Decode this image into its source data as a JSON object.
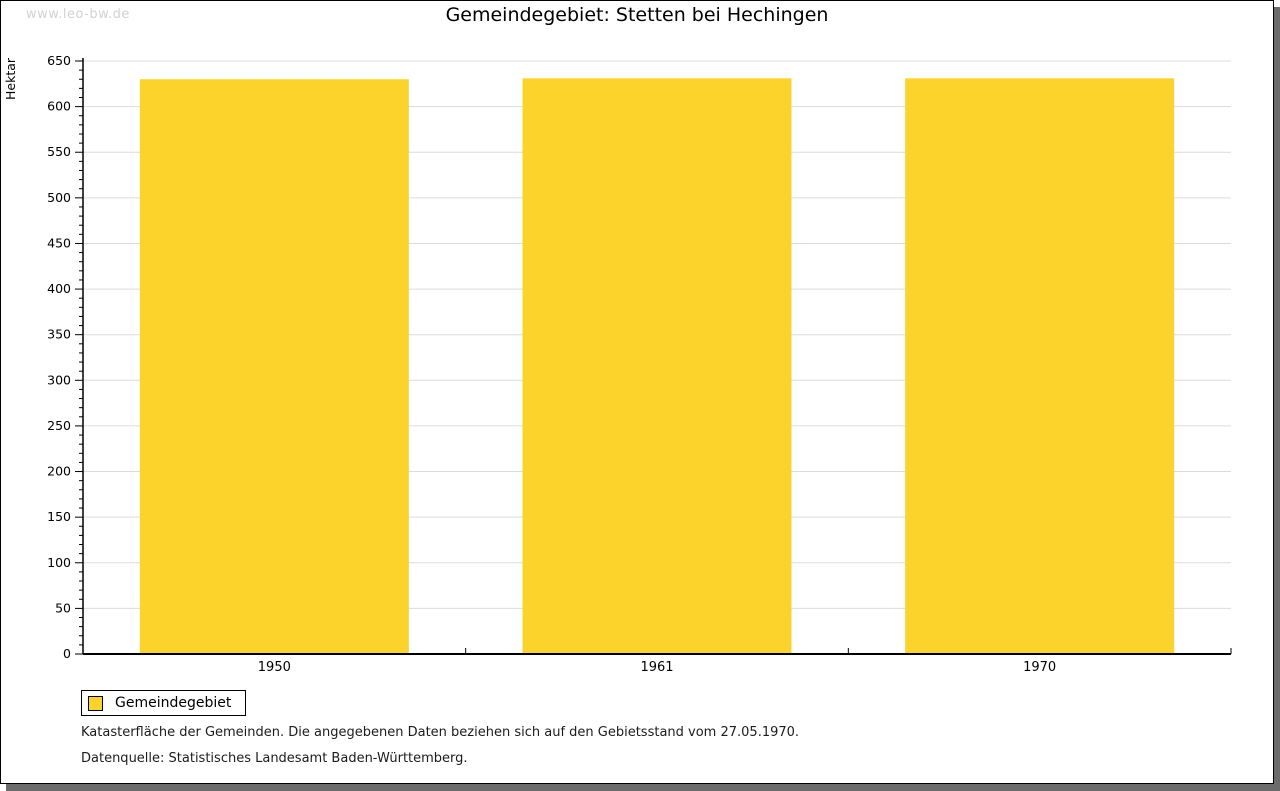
{
  "page": {
    "watermark": "www.leo-bw.de",
    "title": "Gemeindegebiet: Stetten bei Hechingen"
  },
  "chart_data": {
    "type": "bar",
    "title": "Gemeindegebiet: Stetten bei Hechingen",
    "categories": [
      "1950",
      "1961",
      "1970"
    ],
    "series": [
      {
        "name": "Gemeindegebiet",
        "values": [
          630,
          631,
          631
        ]
      }
    ],
    "xlabel": "",
    "ylabel": "Hektar",
    "ylim": [
      0,
      650
    ],
    "ytick_major": 50,
    "ytick_minor": 10,
    "grid": "horizontal-major",
    "legend_position": "bottom-left",
    "bar_color": "#fbd32a",
    "gridline_color": "#dcdcdc",
    "axis_color": "#000000"
  },
  "legend": {
    "items": [
      {
        "label": "Gemeindegebiet",
        "color": "#fbd32a"
      }
    ]
  },
  "footer": {
    "line1": "Katasterfläche der Gemeinden. Die angegebenen Daten beziehen sich auf den Gebietsstand vom 27.05.1970.",
    "line2": "Datenquelle: Statistisches Landesamt Baden-Württemberg."
  }
}
